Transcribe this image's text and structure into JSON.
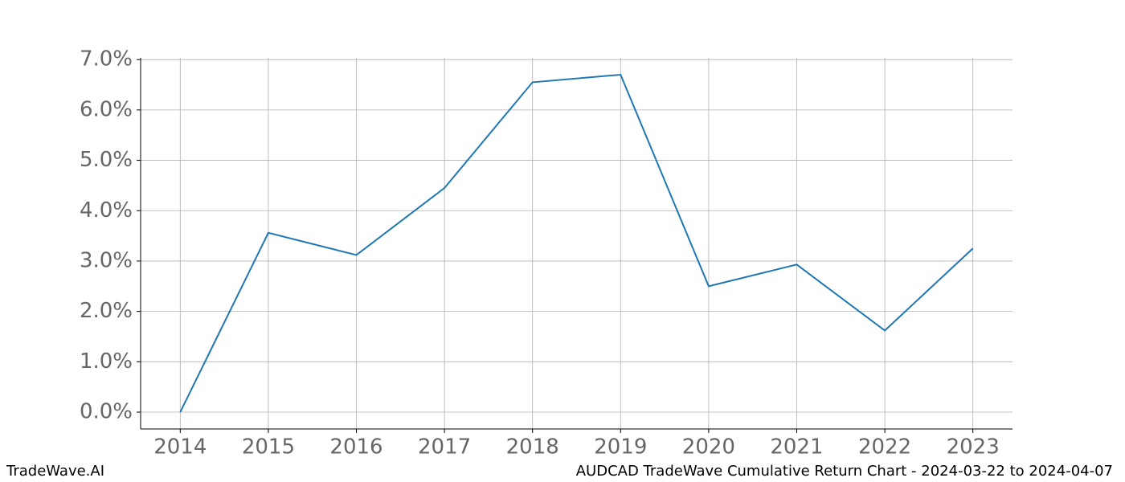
{
  "chart_data": {
    "type": "line",
    "title": "AUDCAD TradeWave Cumulative Return Chart - 2024-03-22 to 2024-04-07",
    "watermark": "TradeWave.AI",
    "x": [
      2014,
      2015,
      2016,
      2017,
      2018,
      2019,
      2020,
      2021,
      2022,
      2023
    ],
    "series": [
      {
        "name": "AUDCAD",
        "color": "#1f77b4",
        "values": [
          0.0,
          3.56,
          3.12,
          4.45,
          6.55,
          6.7,
          2.5,
          2.93,
          1.62,
          3.25
        ]
      }
    ],
    "xlim": [
      2013.55,
      2023.45
    ],
    "xticks": [
      2014,
      2015,
      2016,
      2017,
      2018,
      2019,
      2020,
      2021,
      2022,
      2023
    ],
    "ylim": [
      -0.335,
      7.035
    ],
    "yticks": [
      {
        "value": 0,
        "label": "0.0%"
      },
      {
        "value": 1,
        "label": "1.0%"
      },
      {
        "value": 2,
        "label": "2.0%"
      },
      {
        "value": 3,
        "label": "3.0%"
      },
      {
        "value": 4,
        "label": "4.0%"
      },
      {
        "value": 5,
        "label": "5.0%"
      },
      {
        "value": 6,
        "label": "6.0%"
      },
      {
        "value": 7,
        "label": "7.0%"
      }
    ],
    "grid": true
  }
}
